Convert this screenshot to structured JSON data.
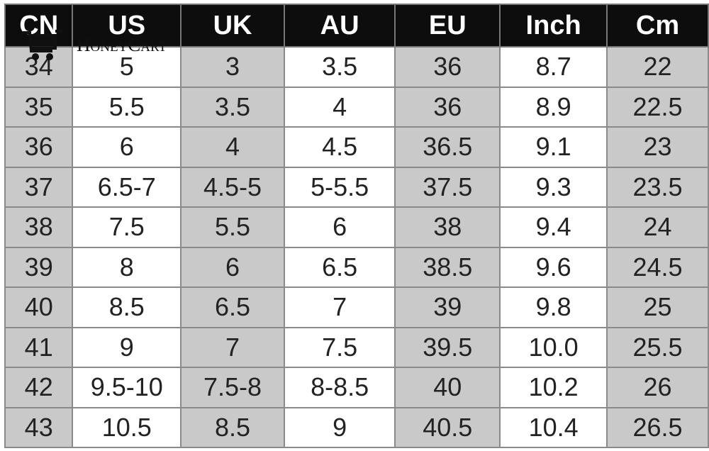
{
  "headers": [
    "CN",
    "US",
    "UK",
    "AU",
    "EU",
    "Inch",
    "Cm"
  ],
  "rows": [
    [
      "34",
      "5",
      "3",
      "3.5",
      "36",
      "8.7",
      "22"
    ],
    [
      "35",
      "5.5",
      "3.5",
      "4",
      "36",
      "8.9",
      "22.5"
    ],
    [
      "36",
      "6",
      "4",
      "4.5",
      "36.5",
      "9.1",
      "23"
    ],
    [
      "37",
      "6.5-7",
      "4.5-5",
      "5-5.5",
      "37.5",
      "9.3",
      "23.5"
    ],
    [
      "38",
      "7.5",
      "5.5",
      "6",
      "38",
      "9.4",
      "24"
    ],
    [
      "39",
      "8",
      "6",
      "6.5",
      "38.5",
      "9.6",
      "24.5"
    ],
    [
      "40",
      "8.5",
      "6.5",
      "7",
      "39",
      "9.8",
      "25"
    ],
    [
      "41",
      "9",
      "7",
      "7.5",
      "39.5",
      "10.0",
      "25.5"
    ],
    [
      "42",
      "9.5-10",
      "7.5-8",
      "8-8.5",
      "40",
      "10.2",
      "26"
    ],
    [
      "43",
      "10.5",
      "8.5",
      "9",
      "40.5",
      "10.4",
      "26.5"
    ]
  ],
  "watermark": {
    "text": "HoneyCart",
    "icon": "shopping-cart-icon"
  },
  "colors": {
    "header_bg": "#0d0d0d",
    "shaded_col": "#c9c9c9",
    "plain_col": "#ffffff"
  }
}
